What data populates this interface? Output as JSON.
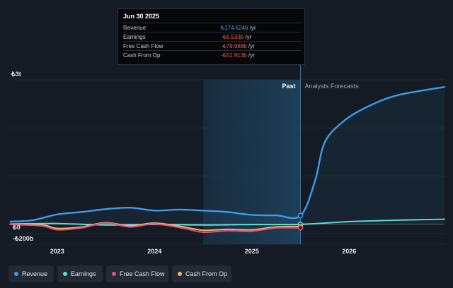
{
  "tooltip": {
    "date": "Jun 30 2025",
    "rows": [
      {
        "label": "Revenue",
        "value": "₺174.624b",
        "unit": " /yr",
        "color": "#4aa3ef"
      },
      {
        "label": "Earnings",
        "value": "-₺6.533b",
        "unit": " /yr",
        "color": "#f05b5b"
      },
      {
        "label": "Free Cash Flow",
        "value": "-₺79.968b",
        "unit": " /yr",
        "color": "#f05b5b"
      },
      {
        "label": "Cash From Op",
        "value": "-₺51.913b",
        "unit": " /yr",
        "color": "#f05b5b"
      }
    ]
  },
  "legend": [
    {
      "label": "Revenue",
      "color": "#3d9be9"
    },
    {
      "label": "Earnings",
      "color": "#5ee0d6"
    },
    {
      "label": "Free Cash Flow",
      "color": "#e14f86"
    },
    {
      "label": "Cash From Op",
      "color": "#f2b45a"
    }
  ],
  "chart_data": {
    "type": "line",
    "y_tick_labels": [
      "₺3t",
      "₺0",
      "-₺200b"
    ],
    "x_tick_labels": [
      "2023",
      "2024",
      "2025",
      "2026"
    ],
    "past_label": "Past",
    "forecast_label": "Analysts Forecasts",
    "ylim": [
      -200,
      3000
    ],
    "xlim": [
      2022.5,
      2026.98
    ],
    "y_gridlines": [
      -200,
      0,
      1000,
      2000,
      3000
    ],
    "y_unit": "₺b",
    "past_end_x": 2025.5,
    "past_shade_start_x": 2024.5,
    "series": [
      {
        "name": "Revenue",
        "color": "#3d9be9",
        "points": [
          [
            2022.52,
            50
          ],
          [
            2022.75,
            80
          ],
          [
            2023.0,
            200
          ],
          [
            2023.25,
            250
          ],
          [
            2023.5,
            310
          ],
          [
            2023.75,
            340
          ],
          [
            2024.0,
            280
          ],
          [
            2024.25,
            300
          ],
          [
            2024.5,
            280
          ],
          [
            2024.75,
            250
          ],
          [
            2025.0,
            190
          ],
          [
            2025.25,
            180
          ],
          [
            2025.5,
            175
          ],
          [
            2025.65,
            900
          ],
          [
            2025.75,
            1700
          ],
          [
            2025.95,
            2150
          ],
          [
            2026.2,
            2450
          ],
          [
            2026.5,
            2680
          ],
          [
            2026.98,
            2850
          ]
        ]
      },
      {
        "name": "Earnings",
        "color": "#5ee0d6",
        "points": [
          [
            2022.52,
            0
          ],
          [
            2023.0,
            10
          ],
          [
            2023.5,
            -20
          ],
          [
            2024.0,
            -10
          ],
          [
            2024.5,
            -20
          ],
          [
            2025.0,
            -10
          ],
          [
            2025.5,
            -7
          ],
          [
            2026.0,
            50
          ],
          [
            2026.5,
            80
          ],
          [
            2026.98,
            100
          ]
        ]
      },
      {
        "name": "Free Cash Flow",
        "color": "#e14f86",
        "points": [
          [
            2022.52,
            -10
          ],
          [
            2022.85,
            -40
          ],
          [
            2023.0,
            -120
          ],
          [
            2023.25,
            -80
          ],
          [
            2023.5,
            20
          ],
          [
            2023.75,
            -60
          ],
          [
            2024.0,
            0
          ],
          [
            2024.3,
            -90
          ],
          [
            2024.5,
            -170
          ],
          [
            2024.75,
            -140
          ],
          [
            2025.0,
            -150
          ],
          [
            2025.25,
            -80
          ],
          [
            2025.5,
            -80
          ]
        ]
      },
      {
        "name": "Cash From Op",
        "color": "#f2b45a",
        "points": [
          [
            2022.52,
            -5
          ],
          [
            2022.85,
            -20
          ],
          [
            2023.0,
            -90
          ],
          [
            2023.25,
            -60
          ],
          [
            2023.5,
            30
          ],
          [
            2023.75,
            -40
          ],
          [
            2024.0,
            20
          ],
          [
            2024.3,
            -60
          ],
          [
            2024.5,
            -130
          ],
          [
            2024.75,
            -110
          ],
          [
            2025.0,
            -120
          ],
          [
            2025.25,
            -60
          ],
          [
            2025.5,
            -52
          ]
        ]
      }
    ]
  }
}
